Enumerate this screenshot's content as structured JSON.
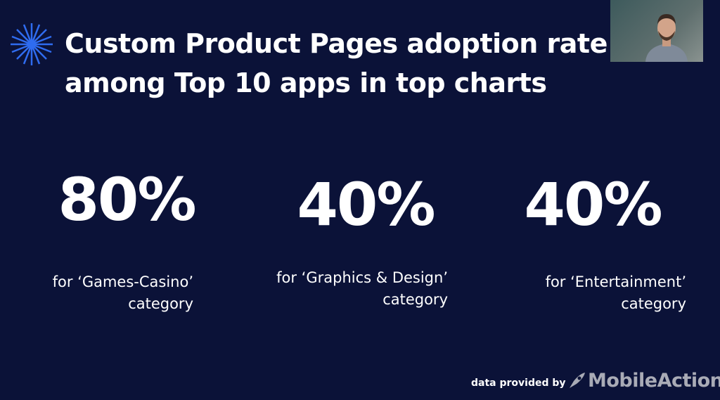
{
  "slide": {
    "title": [
      "Custom Product Pages adoption rate",
      "among Top 10 apps in top charts"
    ],
    "stats": [
      {
        "value": "80%",
        "caption": [
          "for ‘Games-Casino’",
          "category"
        ]
      },
      {
        "value": "40%",
        "caption": [
          "for ‘Graphics & Design’",
          "category"
        ]
      },
      {
        "value": "40%",
        "caption": [
          "for ‘Entertainment’",
          "category"
        ]
      }
    ],
    "footer": {
      "text": "data provided by",
      "brand": "MobileAction"
    }
  }
}
